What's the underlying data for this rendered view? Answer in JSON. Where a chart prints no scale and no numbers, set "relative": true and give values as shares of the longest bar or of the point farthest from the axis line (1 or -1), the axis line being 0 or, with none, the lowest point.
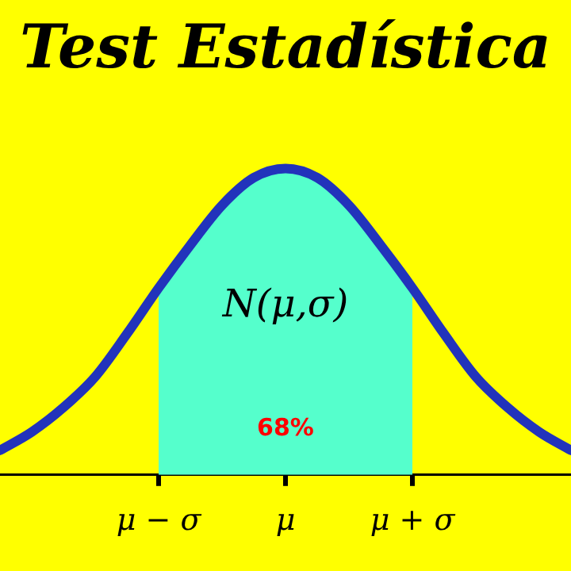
{
  "chart_data": {
    "type": "line",
    "title": "Test Estadística",
    "relative": true,
    "categories": [
      null,
      null,
      null,
      null,
      null,
      "μ − σ",
      null,
      null,
      null,
      "μ",
      null,
      null,
      null,
      "μ + σ",
      null,
      null,
      null,
      null,
      null
    ],
    "series": [
      {
        "color": "#2233bb",
        "values": [
          0.08,
          0.14,
          0.22,
          0.32,
          0.46,
          0.61,
          0.75,
          0.88,
          0.97,
          1,
          0.97,
          0.88,
          0.75,
          0.61,
          0.46,
          0.32,
          0.22,
          0.14,
          0.08
        ]
      },
      {
        "type": "area",
        "color": "#55ffcc",
        "values": [
          null,
          null,
          null,
          null,
          null,
          0.61,
          0.75,
          0.88,
          0.97,
          1,
          0.97,
          0.88,
          0.75,
          0.61,
          null,
          null,
          null,
          null,
          null
        ]
      }
    ],
    "annotations": [
      "N(μ,σ)",
      "68%"
    ],
    "grid": false,
    "legend": false,
    "marker": "none",
    "line_style": "solid"
  }
}
